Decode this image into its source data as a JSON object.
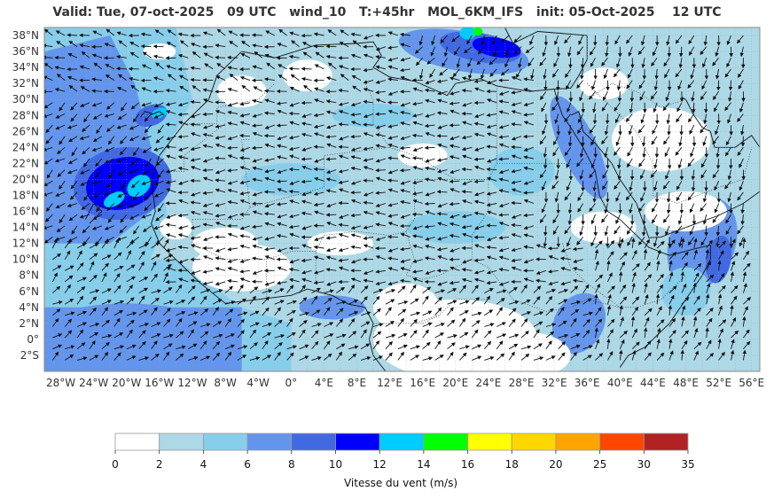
{
  "title": "Valid: Tue, 07-oct-2025   09 UTC   wind_10   T:+45hr   MOL_6KM_IFS   init: 05-Oct-2025    12 UTC",
  "map": {
    "lon_range": [
      -30,
      57
    ],
    "lat_range": [
      -4,
      39
    ],
    "lat_ticks": [
      "38°N",
      "36°N",
      "34°N",
      "32°N",
      "30°N",
      "28°N",
      "26°N",
      "24°N",
      "22°N",
      "20°N",
      "18°N",
      "16°N",
      "14°N",
      "12°N",
      "10°N",
      "8°N",
      "6°N",
      "4°N",
      "2°N",
      "0°",
      "2°S"
    ],
    "lon_ticks": [
      "28°W",
      "24°W",
      "20°W",
      "16°W",
      "12°W",
      "8°W",
      "4°W",
      "0°",
      "4°E",
      "8°E",
      "12°E",
      "16°E",
      "20°E",
      "24°E",
      "28°E",
      "32°E",
      "36°E",
      "40°E",
      "44°E",
      "48°E",
      "52°E",
      "56°E"
    ],
    "land_color": "#ffffff",
    "grid": true
  },
  "colorbar": {
    "label": "Vitesse du vent (m/s)",
    "ticks": [
      "0",
      "2",
      "4",
      "6",
      "8",
      "10",
      "12",
      "14",
      "16",
      "18",
      "20",
      "25",
      "30",
      "35"
    ],
    "colors": [
      "#ffffff",
      "#add8e6",
      "#87ceeb",
      "#6495ed",
      "#4169e1",
      "#0000ff",
      "#00ccff",
      "#00ff00",
      "#ffff00",
      "#ffd700",
      "#ffa500",
      "#ff4500",
      "#b22222"
    ]
  }
}
